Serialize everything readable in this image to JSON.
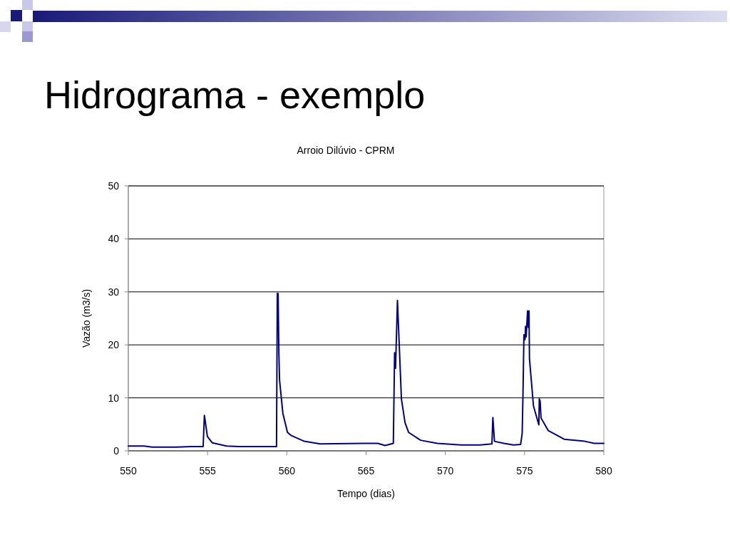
{
  "chart_data": {
    "type": "line",
    "title": "Hidrograma - exemplo",
    "subtitle": "Arroio Dilúvio - CPRM",
    "xlabel": "Tempo (dias)",
    "ylabel": "Vazão (m3/s)",
    "x": [
      550,
      551,
      551.5,
      552,
      553,
      554,
      554.72,
      554.8,
      554.99,
      555.3,
      556.2,
      557,
      558,
      559.35,
      559.4,
      559.45,
      559.5,
      559.54,
      559.75,
      560.04,
      560.27,
      561.1,
      562.1,
      564.84,
      565.74,
      566.2,
      566.72,
      566.8,
      566.86,
      566.98,
      567.23,
      567.46,
      567.68,
      568.44,
      569.5,
      571,
      572.2,
      572.94,
      573.0,
      573.1,
      573.7,
      574.3,
      574.75,
      574.85,
      574.9,
      574.96,
      575.03,
      575.06,
      575.1,
      575.19,
      575.24,
      575.28,
      575.31,
      575.56,
      575.9,
      575.93,
      575.98,
      576.04,
      576.5,
      577.5,
      578.8,
      579.4,
      580
    ],
    "series": [
      {
        "color": "#000080",
        "values": [
          0.9,
          0.9,
          0.7,
          0.7,
          0.7,
          0.8,
          0.8,
          6.7,
          2.7,
          1.5,
          0.9,
          0.8,
          0.8,
          0.8,
          29.7,
          29.7,
          18.3,
          13.4,
          7.1,
          3.5,
          2.9,
          1.8,
          1.3,
          1.4,
          1.4,
          1.0,
          1.4,
          18.5,
          15.6,
          28.4,
          9.8,
          5.3,
          3.5,
          2.0,
          1.4,
          1.1,
          1.1,
          1.3,
          6.3,
          1.8,
          1.4,
          1.1,
          1.2,
          3.3,
          10.7,
          21.9,
          21.0,
          23.5,
          21.5,
          26.4,
          23.3,
          26.4,
          17.4,
          8.5,
          4.9,
          9.8,
          9.4,
          6.2,
          3.8,
          2.2,
          1.8,
          1.4,
          1.4
        ]
      }
    ],
    "xlim": [
      550,
      580
    ],
    "xticks": [
      550,
      555,
      560,
      565,
      570,
      575,
      580
    ],
    "ylim": [
      0,
      50
    ],
    "yticks": [
      0,
      10,
      20,
      30,
      40,
      50
    ],
    "grid": "y"
  }
}
